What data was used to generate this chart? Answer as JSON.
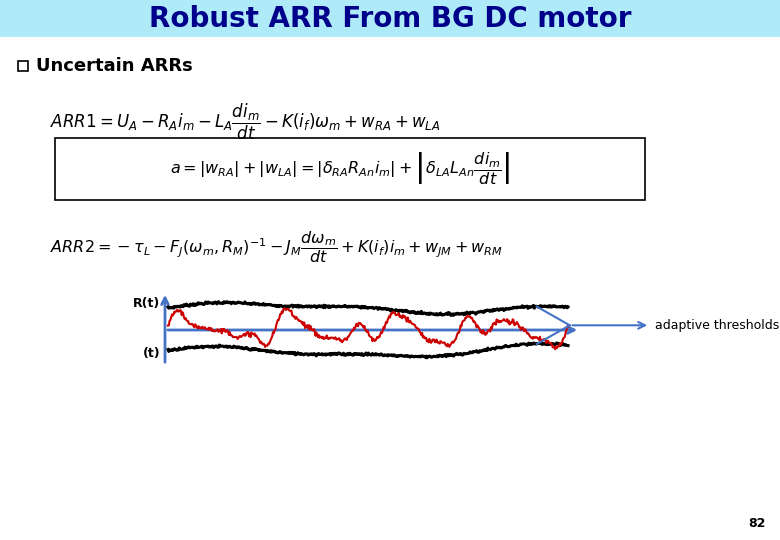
{
  "title": "Robust ARR From BG DC motor",
  "title_bg": "#aeeaf8",
  "title_color": "#00008B",
  "subtitle": "Uncertain ARRs",
  "page_number": "82",
  "bg_color": "#ffffff",
  "arrow_color": "#4472c4",
  "signal_color_black": "#000000",
  "signal_color_red": "#cc0000",
  "label_Rt": "R(t)",
  "label_t": "(t)",
  "label_adaptive": "adaptive thresholds"
}
